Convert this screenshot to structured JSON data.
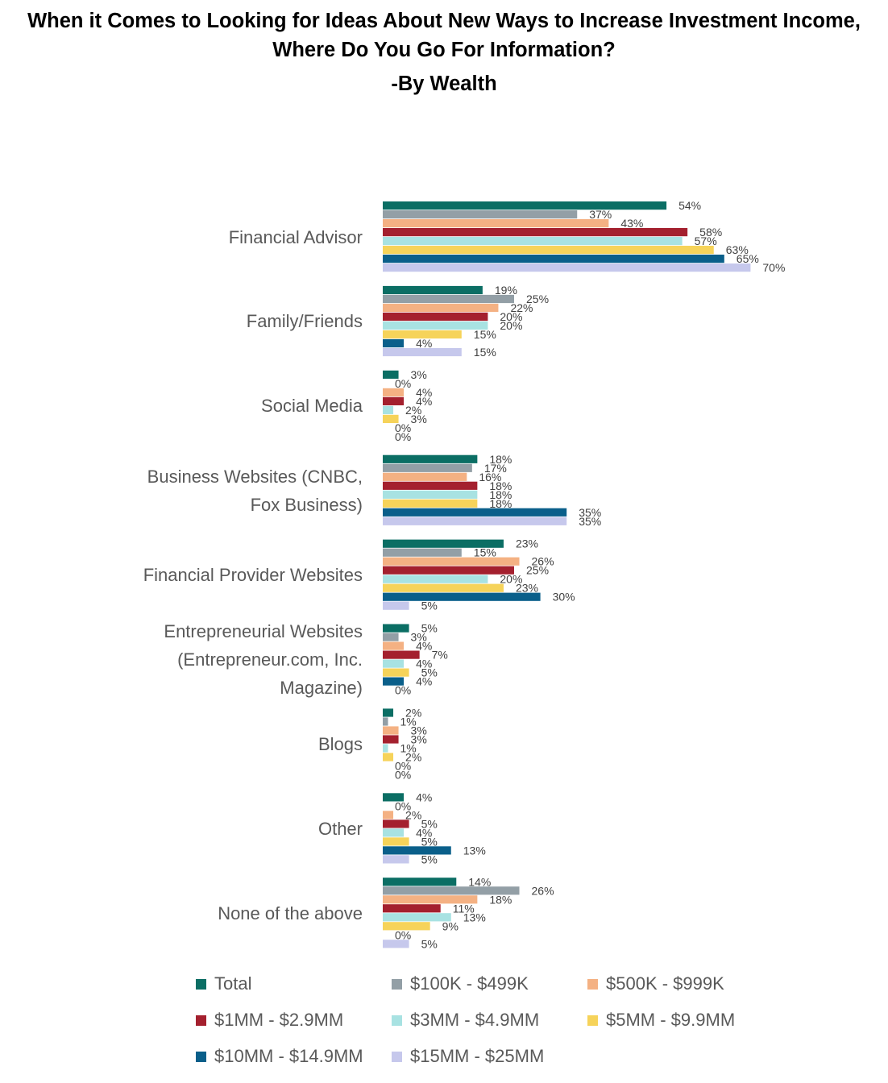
{
  "chart_data": {
    "type": "bar",
    "orientation": "horizontal",
    "title": "When it Comes to Looking for Ideas About New Ways to Increase Investment Income, Where Do You Go For Information?",
    "subtitle": "-By Wealth",
    "categories": [
      "Financial Advisor",
      "Family/Friends",
      "Social Media",
      "Business Websites (CNBC, Fox Business)",
      "Financial Provider Websites",
      "Entrepreneurial Websites (Entrepreneur.com, Inc. Magazine)",
      "Blogs",
      "Other",
      "None of the above"
    ],
    "series": [
      {
        "name": "Total",
        "color": "#0b6e64",
        "values": [
          54,
          19,
          3,
          18,
          23,
          5,
          2,
          4,
          14
        ]
      },
      {
        "name": "$100K - $499K",
        "color": "#939fa6",
        "values": [
          37,
          25,
          0,
          17,
          15,
          3,
          1,
          0,
          26
        ]
      },
      {
        "name": "$500K - $999K",
        "color": "#f4b183",
        "values": [
          43,
          22,
          4,
          16,
          26,
          4,
          3,
          2,
          18
        ]
      },
      {
        "name": "$1MM - $2.9MM",
        "color": "#a4202e",
        "values": [
          58,
          20,
          4,
          18,
          25,
          7,
          3,
          5,
          11
        ]
      },
      {
        "name": "$3MM - $4.9MM",
        "color": "#a8e2e2",
        "values": [
          57,
          20,
          2,
          18,
          20,
          4,
          1,
          4,
          13
        ]
      },
      {
        "name": "$5MM - $9.9MM",
        "color": "#f6d35a",
        "values": [
          63,
          15,
          3,
          18,
          23,
          5,
          2,
          5,
          9
        ]
      },
      {
        "name": "$10MM - $14.9MM",
        "color": "#0a5f8a",
        "values": [
          65,
          4,
          0,
          35,
          30,
          4,
          0,
          13,
          0
        ]
      },
      {
        "name": "$15MM - $25MM",
        "color": "#c6c8ec",
        "values": [
          70,
          15,
          0,
          35,
          5,
          0,
          0,
          5,
          5
        ]
      }
    ],
    "value_suffix": "%",
    "xlim": [
      0,
      100
    ],
    "grid": false,
    "legend": "bottom",
    "category_label_lines": [
      [
        "Financial Advisor"
      ],
      [
        "Family/Friends"
      ],
      [
        "Social Media"
      ],
      [
        "Business Websites (CNBC,",
        "Fox Business)"
      ],
      [
        "Financial Provider Websites"
      ],
      [
        "Entrepreneurial Websites",
        "(Entrepreneur.com, Inc.",
        "Magazine)"
      ],
      [
        "Blogs"
      ],
      [
        "Other"
      ],
      [
        "None of the above"
      ]
    ]
  }
}
